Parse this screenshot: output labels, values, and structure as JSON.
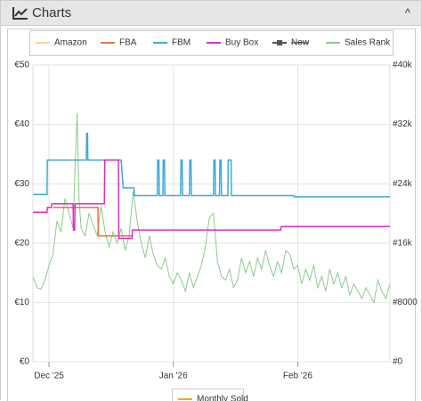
{
  "panel": {
    "title": "Charts",
    "toggle": "^"
  },
  "chart_data": {
    "type": "line",
    "xlim": [
      0,
      89
    ],
    "xticks": [
      {
        "value": 4,
        "label": "Dec '25"
      },
      {
        "value": 35,
        "label": "Jan '26"
      },
      {
        "value": 66,
        "label": "Feb '26"
      }
    ],
    "ylim": [
      0,
      50
    ],
    "yticks": [
      {
        "value": 0,
        "label": "€0"
      },
      {
        "value": 10,
        "label": "€10"
      },
      {
        "value": 20,
        "label": "€20"
      },
      {
        "value": 30,
        "label": "€30"
      },
      {
        "value": 40,
        "label": "€40"
      },
      {
        "value": 50,
        "label": "€50"
      }
    ],
    "y2lim": [
      0,
      40000
    ],
    "y2ticks": [
      {
        "value": 0,
        "label": "#0"
      },
      {
        "value": 8000,
        "label": "#8000"
      },
      {
        "value": 16000,
        "label": "#16k"
      },
      {
        "value": 24000,
        "label": "#24k"
      },
      {
        "value": 32000,
        "label": "#32k"
      },
      {
        "value": 40000,
        "label": "#40k"
      }
    ],
    "grid": true,
    "series": [
      {
        "name": "Amazon",
        "color": "#f8d49c",
        "x": [],
        "values": []
      },
      {
        "name": "FBA",
        "color": "#e8743b",
        "x": [
          5,
          16.2,
          16.3,
          25
        ],
        "values": [
          26,
          26,
          21.2,
          21.2
        ]
      },
      {
        "name": "FBM",
        "color": "#3fa9d8",
        "x": [
          0,
          3.5,
          3.6,
          13.3,
          13.4,
          13.6,
          13.7,
          22,
          22.5,
          25.2,
          25.3,
          31,
          31.1,
          31.4,
          31.5,
          32.4,
          32.5,
          32.8,
          32.9,
          36.8,
          36.9,
          37.2,
          37.3,
          39,
          39.1,
          39.4,
          39.5,
          45,
          45.1,
          45.4,
          45.5,
          46.5,
          46.6,
          46.9,
          47,
          48.6,
          48.7,
          49.4,
          49.5,
          65,
          65.1,
          89
        ],
        "values": [
          28.2,
          28.2,
          34,
          34,
          38.5,
          38.5,
          34,
          34,
          29.3,
          29.3,
          28,
          28,
          34,
          34,
          28,
          28,
          34,
          34,
          28,
          28,
          34,
          34,
          28,
          28,
          34,
          34,
          28,
          28,
          34,
          34,
          28,
          28,
          34,
          34,
          28,
          28,
          34,
          34,
          28,
          28,
          27.8,
          27.8
        ]
      },
      {
        "name": "Buy Box",
        "color": "#e22bc8",
        "x": [
          0,
          3.5,
          3.6,
          4.6,
          4.7,
          10,
          10.1,
          10.4,
          10.5,
          17.8,
          17.9,
          21.3,
          21.4,
          24.7,
          24.8,
          61.8,
          61.9,
          89
        ],
        "values": [
          25.2,
          25.2,
          26,
          26,
          26.6,
          26.6,
          22.2,
          22.2,
          26.6,
          26.6,
          34,
          34,
          20.8,
          20.8,
          22.2,
          22.2,
          22.8,
          22.8
        ]
      },
      {
        "name": "New",
        "color": "#555555",
        "hidden": true,
        "x": [],
        "values": []
      },
      {
        "name": "Sales Rank",
        "color": "#8fc98f",
        "axis": "y2",
        "x": [
          0,
          1,
          2,
          3,
          4,
          5,
          6,
          7,
          8,
          9,
          10,
          10.5,
          11,
          11.5,
          12,
          13,
          14,
          15,
          16,
          17,
          18,
          19,
          20,
          21,
          22,
          23,
          24,
          25,
          26,
          27,
          28,
          29,
          30,
          31,
          32,
          33,
          34,
          35,
          36,
          37,
          38,
          39,
          40,
          41,
          42,
          43,
          44,
          45,
          46,
          47,
          48,
          49,
          50,
          51,
          52,
          53,
          54,
          55,
          56,
          57,
          58,
          59,
          60,
          61,
          62,
          63,
          64,
          65,
          66,
          67,
          68,
          69,
          70,
          71,
          72,
          73,
          74,
          75,
          76,
          77,
          78,
          79,
          80,
          81,
          82,
          83,
          84,
          85,
          86,
          87,
          88,
          89
        ],
        "values": [
          11500,
          10000,
          9800,
          11000,
          13000,
          14500,
          19000,
          17500,
          22000,
          20000,
          18000,
          26000,
          33500,
          22000,
          18000,
          17000,
          20000,
          18500,
          17000,
          21000,
          17500,
          15500,
          17500,
          16000,
          18000,
          15000,
          17000,
          23000,
          19000,
          16000,
          14000,
          17000,
          14500,
          13000,
          12500,
          14000,
          11500,
          10500,
          12000,
          11000,
          9500,
          12000,
          10000,
          11500,
          13000,
          15500,
          19500,
          20000,
          13500,
          11500,
          11000,
          12500,
          10000,
          11000,
          14000,
          12000,
          13500,
          11500,
          14000,
          12500,
          15000,
          13000,
          11500,
          13500,
          12000,
          15000,
          14500,
          12500,
          13000,
          10500,
          12500,
          11000,
          13000,
          10000,
          11500,
          9500,
          12500,
          10500,
          12000,
          10000,
          11500,
          9000,
          10500,
          9500,
          8500,
          10000,
          9000,
          8000,
          11000,
          9500,
          8500,
          10500
        ]
      },
      {
        "name": "Monthly Sold",
        "color": "#f5a623",
        "legend": "bottom",
        "x": [],
        "values": []
      }
    ]
  }
}
